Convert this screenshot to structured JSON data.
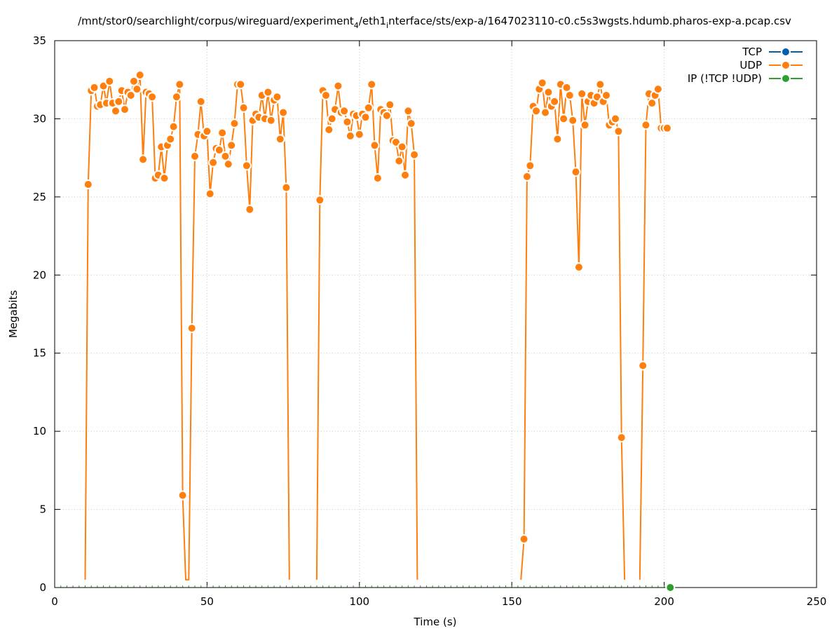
{
  "chart_data": {
    "type": "line",
    "title": {
      "prefix": "/mnt/stor0/searchlight/corpus/wireguard/experiment",
      "sub1": "4",
      "mid": "/eth1",
      "sub2": "i",
      "suffix": "nterface/sts/exp-a/1647023110-c0.c5s3wgsts.hdumb.pharos-exp-a.pcap.csv"
    },
    "xlabel": "Time (s)",
    "ylabel": "Megabits",
    "xlim": [
      0,
      250
    ],
    "ylim": [
      0,
      35
    ],
    "xticks": [
      0,
      50,
      100,
      150,
      200,
      250
    ],
    "yticks": [
      0,
      5,
      10,
      15,
      20,
      25,
      30,
      35
    ],
    "grid": true,
    "legend_position": "top-right",
    "series": [
      {
        "name": "TCP",
        "color": "#0060ad",
        "points": []
      },
      {
        "name": "UDP",
        "color": "#ff7f0e",
        "points": [
          [
            10,
            0.5
          ],
          [
            11,
            25.8
          ],
          [
            12,
            31.8
          ],
          [
            13,
            32.0
          ],
          [
            14,
            30.8
          ],
          [
            15,
            30.9
          ],
          [
            16,
            32.1
          ],
          [
            17,
            31.0
          ],
          [
            18,
            32.4
          ],
          [
            19,
            31.0
          ],
          [
            20,
            30.5
          ],
          [
            21,
            31.1
          ],
          [
            22,
            31.8
          ],
          [
            23,
            30.6
          ],
          [
            24,
            31.7
          ],
          [
            25,
            31.5
          ],
          [
            26,
            32.4
          ],
          [
            27,
            31.9
          ],
          [
            28,
            32.8
          ],
          [
            29,
            27.4
          ],
          [
            30,
            31.7
          ],
          [
            31,
            31.6
          ],
          [
            32,
            31.4
          ],
          [
            33,
            26.2
          ],
          [
            34,
            26.4
          ],
          [
            35,
            28.2
          ],
          [
            36,
            26.2
          ],
          [
            37,
            28.3
          ],
          [
            38,
            28.7
          ],
          [
            39,
            29.5
          ],
          [
            40,
            31.4
          ],
          [
            41,
            32.2
          ],
          [
            42,
            5.9
          ],
          [
            43,
            0.5
          ],
          [
            44,
            0.5
          ],
          [
            45,
            16.6
          ],
          [
            46,
            27.6
          ],
          [
            47,
            29.0
          ],
          [
            48,
            31.1
          ],
          [
            49,
            28.9
          ],
          [
            50,
            29.2
          ],
          [
            51,
            25.2
          ],
          [
            52,
            27.2
          ],
          [
            53,
            28.1
          ],
          [
            54,
            28.0
          ],
          [
            55,
            29.1
          ],
          [
            56,
            27.6
          ],
          [
            57,
            27.1
          ],
          [
            58,
            28.3
          ],
          [
            59,
            29.7
          ],
          [
            60,
            32.2
          ],
          [
            61,
            32.2
          ],
          [
            62,
            30.7
          ],
          [
            63,
            27.0
          ],
          [
            64,
            24.2
          ],
          [
            65,
            29.9
          ],
          [
            66,
            30.3
          ],
          [
            67,
            30.1
          ],
          [
            68,
            31.5
          ],
          [
            69,
            30.0
          ],
          [
            70,
            31.7
          ],
          [
            71,
            29.9
          ],
          [
            72,
            31.2
          ],
          [
            73,
            31.4
          ],
          [
            74,
            28.7
          ],
          [
            75,
            30.4
          ],
          [
            76,
            25.6
          ],
          [
            77,
            0.5
          ],
          [
            86,
            0.5
          ],
          [
            87,
            24.8
          ],
          [
            88,
            31.8
          ],
          [
            89,
            31.5
          ],
          [
            90,
            29.3
          ],
          [
            91,
            30.0
          ],
          [
            92,
            30.6
          ],
          [
            93,
            32.1
          ],
          [
            94,
            30.4
          ],
          [
            95,
            30.5
          ],
          [
            96,
            29.8
          ],
          [
            97,
            28.9
          ],
          [
            98,
            30.3
          ],
          [
            99,
            30.2
          ],
          [
            100,
            29.0
          ],
          [
            101,
            30.3
          ],
          [
            102,
            30.1
          ],
          [
            103,
            30.7
          ],
          [
            104,
            32.2
          ],
          [
            105,
            28.3
          ],
          [
            106,
            26.2
          ],
          [
            107,
            30.6
          ],
          [
            108,
            30.4
          ],
          [
            109,
            30.2
          ],
          [
            110,
            30.9
          ],
          [
            111,
            28.6
          ],
          [
            112,
            28.5
          ],
          [
            113,
            27.3
          ],
          [
            114,
            28.2
          ],
          [
            115,
            26.4
          ],
          [
            116,
            30.5
          ],
          [
            117,
            29.7
          ],
          [
            118,
            27.7
          ],
          [
            119,
            0.5
          ],
          [
            153,
            0.5
          ],
          [
            154,
            3.1
          ],
          [
            155,
            26.3
          ],
          [
            156,
            27.0
          ],
          [
            157,
            30.8
          ],
          [
            158,
            30.5
          ],
          [
            159,
            31.9
          ],
          [
            160,
            32.3
          ],
          [
            161,
            30.4
          ],
          [
            162,
            31.7
          ],
          [
            163,
            30.8
          ],
          [
            164,
            31.1
          ],
          [
            165,
            28.7
          ],
          [
            166,
            32.2
          ],
          [
            167,
            30.0
          ],
          [
            168,
            32.0
          ],
          [
            169,
            31.5
          ],
          [
            170,
            29.9
          ],
          [
            171,
            26.6
          ],
          [
            172,
            20.5
          ],
          [
            173,
            31.6
          ],
          [
            174,
            29.6
          ],
          [
            175,
            31.1
          ],
          [
            176,
            31.5
          ],
          [
            177,
            31.0
          ],
          [
            178,
            31.4
          ],
          [
            179,
            32.2
          ],
          [
            180,
            31.1
          ],
          [
            181,
            31.5
          ],
          [
            182,
            29.6
          ],
          [
            183,
            29.8
          ],
          [
            184,
            30.0
          ],
          [
            185,
            29.2
          ],
          [
            186,
            9.6
          ],
          [
            187,
            0.5
          ],
          [
            192,
            0.5
          ],
          [
            193,
            14.2
          ],
          [
            194,
            29.6
          ],
          [
            195,
            31.6
          ],
          [
            196,
            31.0
          ],
          [
            197,
            31.5
          ],
          [
            198,
            31.9
          ],
          [
            199,
            29.4
          ],
          [
            200,
            29.4
          ],
          [
            201,
            29.4
          ]
        ]
      },
      {
        "name": "IP (!TCP  !UDP)",
        "color": "#2ca02c",
        "points": [
          [
            202,
            0
          ]
        ]
      }
    ]
  }
}
